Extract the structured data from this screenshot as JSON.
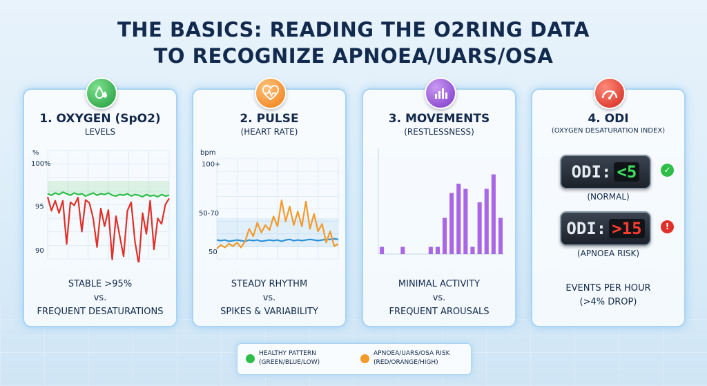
{
  "title": {
    "line1": "THE BASICS: READING THE O2RING DATA",
    "line2": "TO RECOGNIZE APNOEA/UARS/OSA"
  },
  "colors": {
    "healthy_green": "#2fbd4a",
    "risk_red": "#e0302a",
    "risk_orange": "#f39a2a",
    "pulse_blue": "#2b8fd6",
    "movement_purple": "#9b4be0"
  },
  "cards": {
    "oxygen": {
      "icon": "droplets-icon",
      "title": "1. OXYGEN (SpO2)",
      "subtitle": "LEVELS",
      "caption_line1": "STABLE >95%",
      "caption_line2": "vs.",
      "caption_line3": "FREQUENT DESATURATIONS"
    },
    "pulse": {
      "icon": "heart-pulse-icon",
      "title": "2. PULSE",
      "subtitle": "(HEART RATE)",
      "caption_line1": "STEADY RHYTHM",
      "caption_line2": "vs.",
      "caption_line3": "SPIKES & VARIABILITY"
    },
    "movements": {
      "icon": "bar-chart-icon",
      "title": "3. MOVEMENTS",
      "subtitle": "(RESTLESSNESS)",
      "caption_line1": "MINIMAL ACTIVITY",
      "caption_line2": "vs.",
      "caption_line3": "FREQUENT AROUSALS"
    },
    "odi": {
      "icon": "gauge-icon",
      "title": "4. ODI",
      "subtitle": "(OXYGEN DESATURATION INDEX)",
      "normal": {
        "label": "ODI:",
        "value": "<5",
        "desc": "(NORMAL)",
        "status_icon": "check-icon"
      },
      "risk": {
        "label": "ODI:",
        "value": ">15",
        "desc": "(APNOEA RISK)",
        "status_icon": "exclamation-icon"
      },
      "caption_line1": "EVENTS PER HOUR",
      "caption_line2": "(>4% DROP)"
    }
  },
  "chart_data": [
    {
      "type": "line",
      "ylabel": "%",
      "y_ticks": [
        "100%",
        "95",
        "90"
      ],
      "ylim": [
        89,
        101
      ],
      "series": [
        {
          "color": "#2fbd4a",
          "values": [
            99.7,
            99.5,
            99.8,
            99.6,
            99.9,
            99.7,
            99.5,
            99.8,
            99.6,
            99.7,
            99.4,
            99.6,
            99.8,
            99.5,
            99.7,
            99.6,
            99.8,
            99.5,
            99.4,
            99.6,
            99.5,
            99.7,
            99.4,
            99.6,
            99.5,
            99.3,
            99.6,
            99.4,
            99.5,
            99.3,
            99.6,
            99.4,
            99.5
          ]
        },
        {
          "color": "#e0302a",
          "values": [
            99.3,
            97.5,
            98.8,
            97.2,
            98.8,
            93.2,
            98.6,
            98.2,
            99.2,
            94.8,
            98.9,
            98.5,
            96.5,
            92.8,
            97.8,
            95.5,
            97.6,
            91.2,
            96.8,
            94.2,
            91.6,
            97.5,
            98.6,
            93.5,
            90.6,
            97.2,
            94.5,
            98.8,
            92.5,
            96.5,
            95.8,
            98.3,
            99.1
          ]
        }
      ]
    },
    {
      "type": "line",
      "ylabel": "bpm",
      "y_ticks": [
        "100+",
        "50-70",
        "50"
      ],
      "series": [
        {
          "color": "#2b8fd6",
          "values": [
            61,
            60.5,
            61,
            60,
            60.5,
            61,
            60.5,
            60,
            61,
            60.5,
            61,
            60,
            60.5,
            61,
            60.5,
            61,
            60,
            61,
            61.5,
            60.5,
            61,
            60.5,
            61,
            61.5,
            61,
            60.5,
            61,
            61.5,
            61.5,
            62,
            61.5
          ]
        },
        {
          "color": "#f39a2a",
          "values": [
            54,
            57,
            55,
            58,
            56,
            59,
            55,
            60,
            70,
            64,
            75,
            67,
            73,
            69,
            80,
            72,
            93,
            76,
            88,
            73,
            84,
            72,
            92,
            70,
            82,
            68,
            74,
            59,
            68,
            56,
            58
          ]
        }
      ]
    },
    {
      "type": "bar",
      "series": [
        {
          "color": "#9b4be0",
          "values": [
            0.07,
            0,
            0,
            0.07,
            0,
            0,
            0,
            0.07,
            0.07,
            0.35,
            0.59,
            0.68,
            0.63,
            0.07,
            0.5,
            0.63,
            0.77,
            0.35
          ]
        }
      ]
    }
  ],
  "legend": {
    "healthy": {
      "line1": "HEALTHY PATTERN",
      "line2": "(GREEN/BLUE/LOW)"
    },
    "risk": {
      "line1": "APNOEA/UARS/OSA RISK",
      "line2": "(RED/ORANGE/HIGH)"
    }
  }
}
